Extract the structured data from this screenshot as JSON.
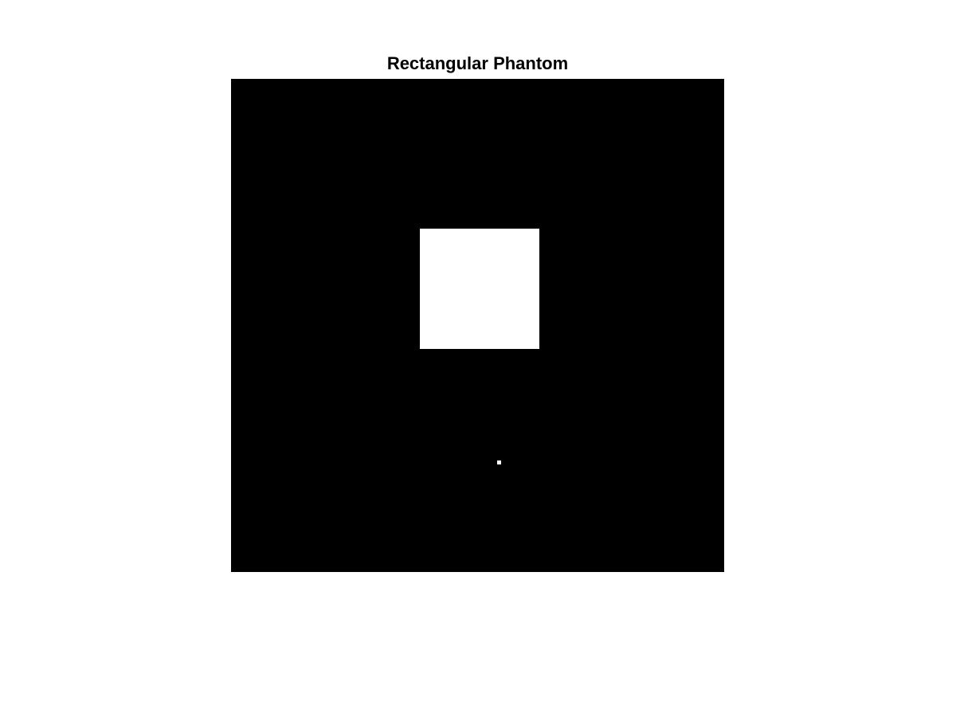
{
  "figure": {
    "title": "Rectangular Phantom",
    "background_color": "#000000",
    "object_color": "#ffffff"
  }
}
